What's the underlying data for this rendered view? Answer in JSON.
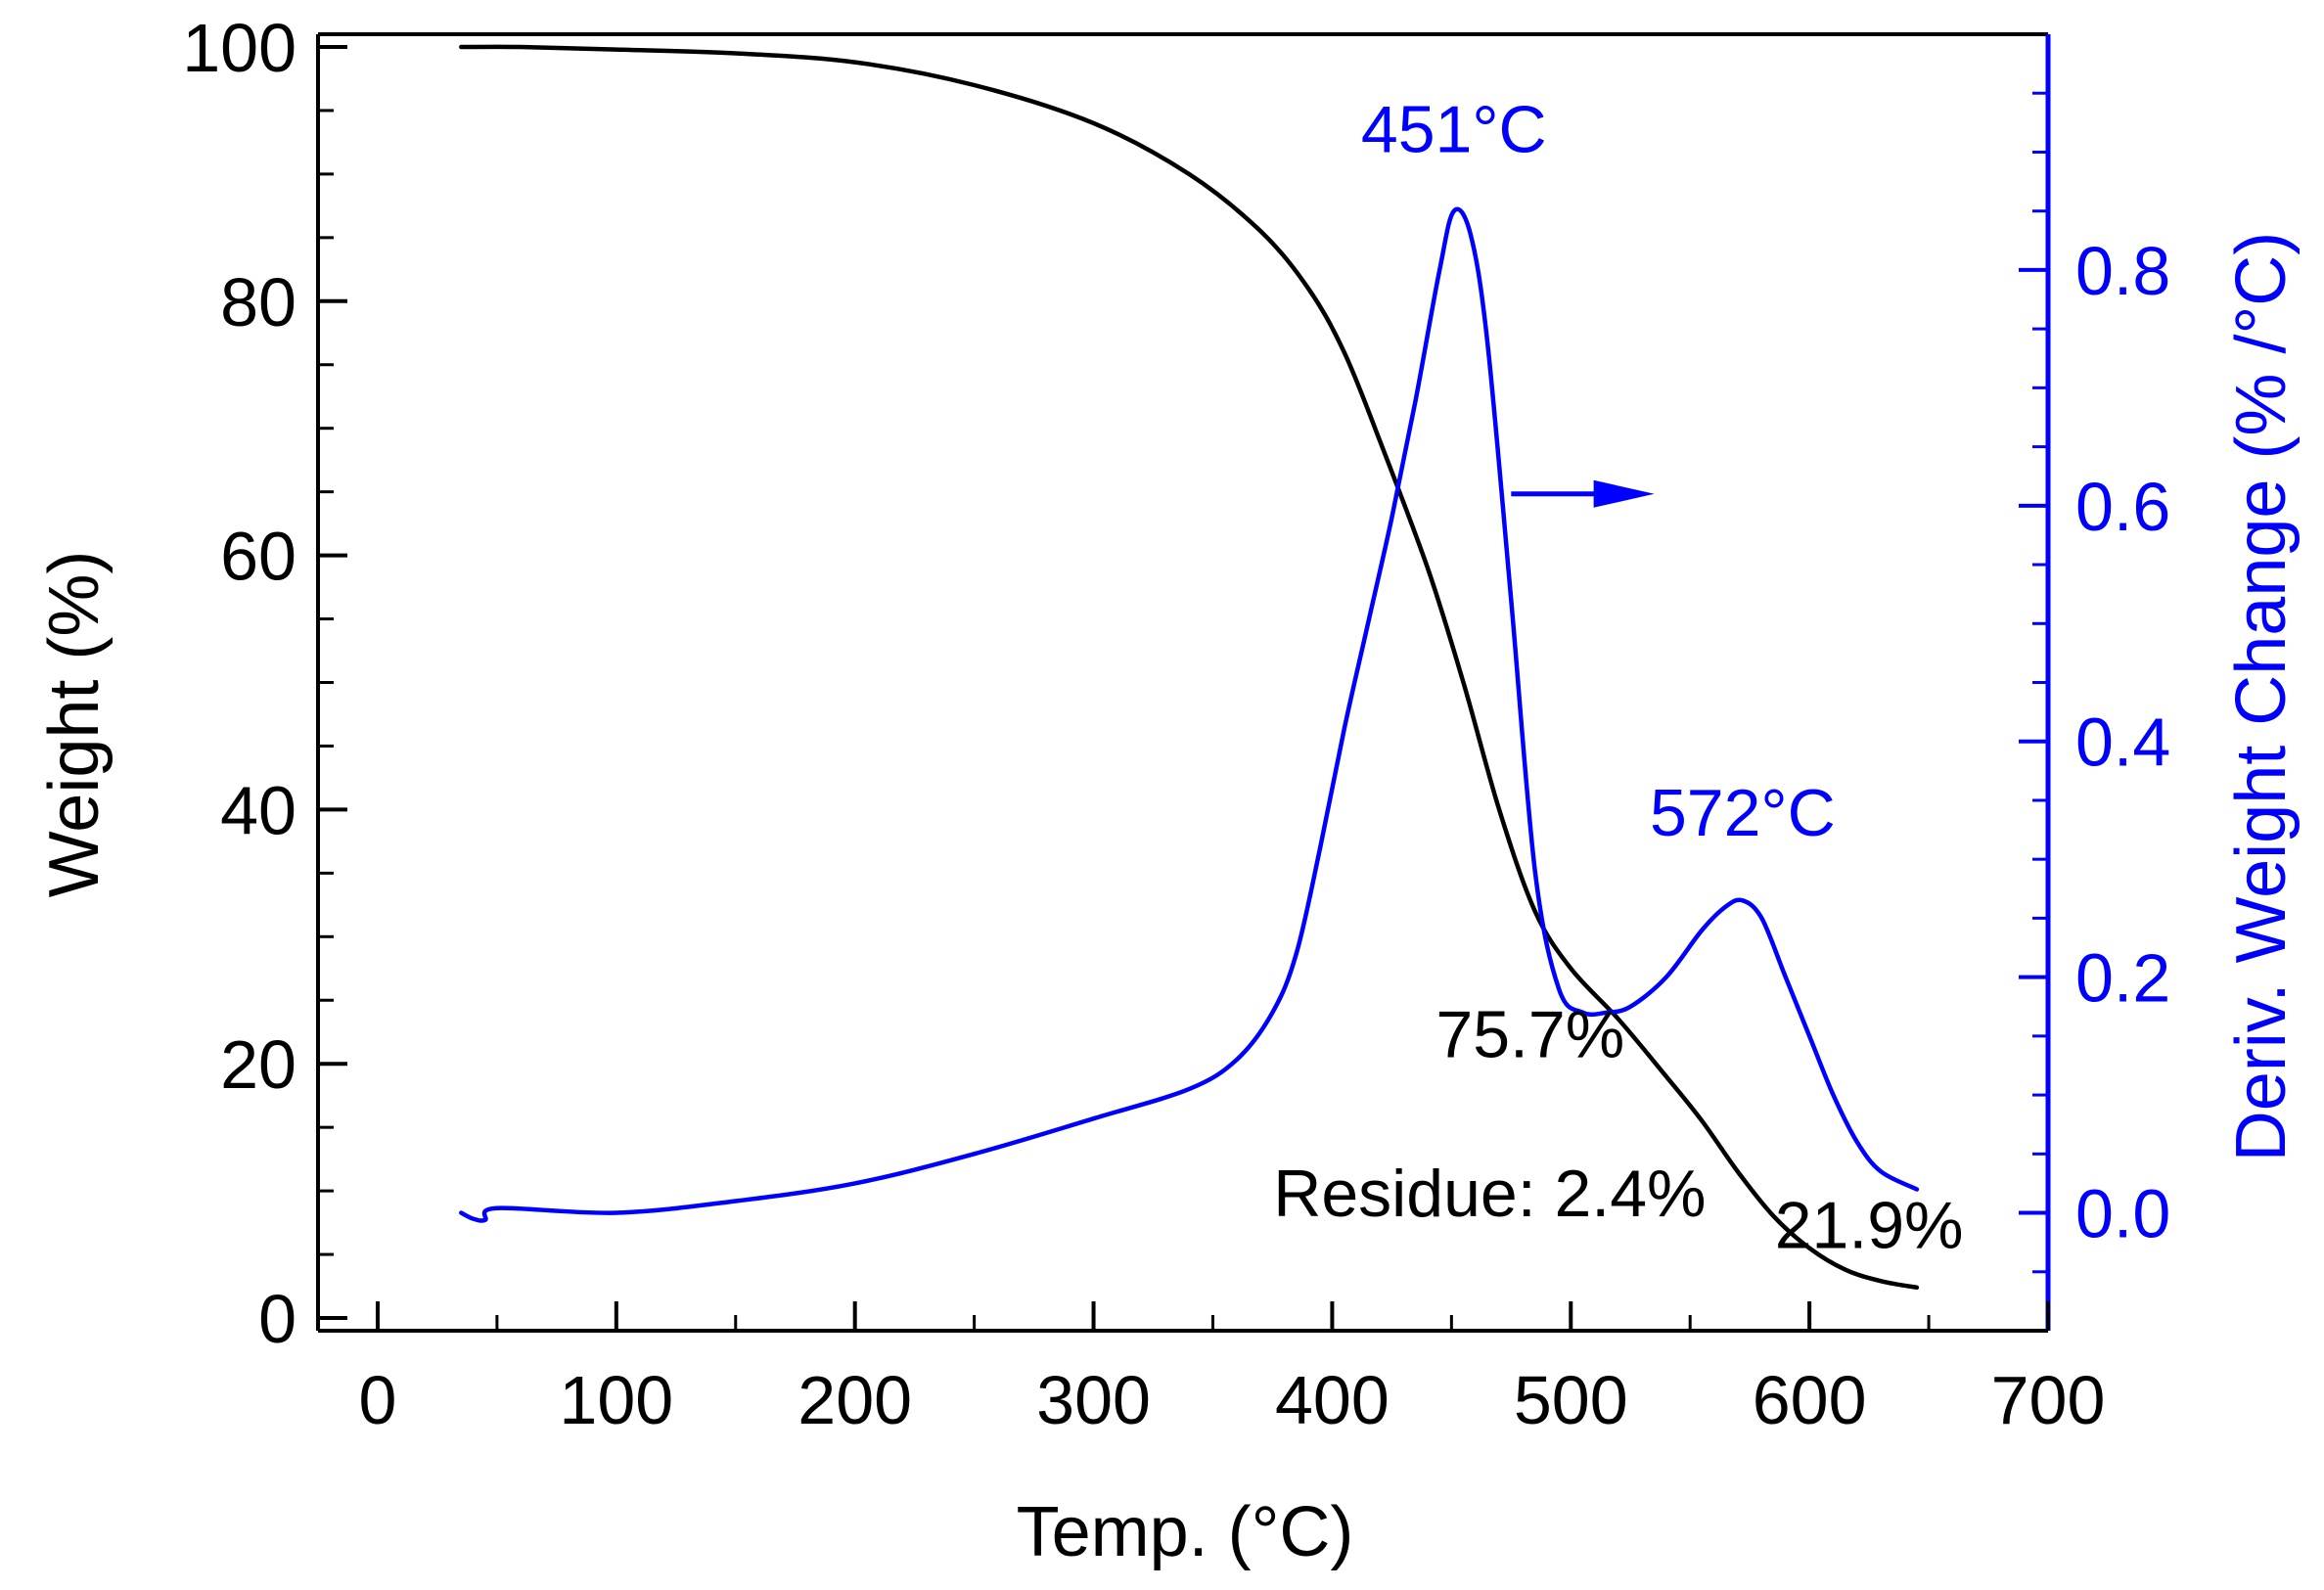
{
  "chart_data": {
    "type": "line",
    "title": "",
    "xlabel": "Temp. (°C)",
    "ylabel": "Weight (%)",
    "y2label": "Deriv. Weight Change (% /°C)",
    "xlim": [
      -25,
      700
    ],
    "ylim": [
      -1,
      101
    ],
    "y2lim": [
      -0.1,
      1.0
    ],
    "x_ticks": [
      "0",
      "100",
      "200",
      "300",
      "400",
      "500",
      "600",
      "700"
    ],
    "y_ticks": [
      "0",
      "20",
      "40",
      "60",
      "80",
      "100"
    ],
    "y2_ticks": [
      "0.0",
      "0.2",
      "0.4",
      "0.6",
      "0.8"
    ],
    "grid": false,
    "colors": {
      "weight": "#000000",
      "deriv": "#0000ff"
    },
    "series": [
      {
        "name": "Weight",
        "axis": "left",
        "x": [
          35,
          60,
          100,
          150,
          200,
          250,
          300,
          340,
          370,
          390,
          405,
          420,
          440,
          455,
          470,
          485,
          500,
          520,
          540,
          555,
          570,
          585,
          600,
          615,
          630,
          645
        ],
        "y": [
          100,
          100,
          99.8,
          99.5,
          98.8,
          97,
          94,
          90,
          85.5,
          81,
          76,
          69,
          59,
          50,
          40,
          32,
          27.5,
          23.5,
          19,
          15.5,
          11.5,
          8,
          5.5,
          3.8,
          2.9,
          2.4
        ]
      },
      {
        "name": "Deriv. Weight Change",
        "axis": "right",
        "x": [
          35,
          40,
          45,
          50,
          100,
          150,
          200,
          250,
          300,
          340,
          360,
          375,
          385,
          395,
          405,
          415,
          425,
          435,
          445,
          451,
          458,
          465,
          475,
          485,
          495,
          505,
          515,
          525,
          540,
          555,
          565,
          572,
          580,
          590,
          600,
          610,
          620,
          630,
          645
        ],
        "y": [
          0.0,
          -0.005,
          -0.006,
          0.004,
          0.0,
          0.01,
          0.025,
          0.05,
          0.08,
          0.105,
          0.13,
          0.17,
          0.22,
          0.31,
          0.41,
          0.5,
          0.59,
          0.69,
          0.8,
          0.85,
          0.83,
          0.74,
          0.52,
          0.29,
          0.19,
          0.17,
          0.17,
          0.175,
          0.2,
          0.24,
          0.26,
          0.265,
          0.25,
          0.2,
          0.15,
          0.1,
          0.06,
          0.035,
          0.02
        ]
      }
    ],
    "annotations": [
      {
        "text": "451°C",
        "x": 451,
        "y2": 0.9,
        "color": "blue"
      },
      {
        "text": "572°C",
        "x": 572,
        "y2": 0.32,
        "color": "blue"
      },
      {
        "text": "75.7%",
        "x": 483,
        "y": 20.5,
        "color": "black"
      },
      {
        "text": "Residue: 2.4%",
        "x": 466,
        "y": 8,
        "color": "black"
      },
      {
        "text": "21.9%",
        "x": 625,
        "y": 5.5,
        "color": "black"
      }
    ],
    "arrow": {
      "from_x": 475,
      "to_x": 535,
      "y2": 0.61,
      "direction": "right",
      "color": "blue"
    }
  }
}
